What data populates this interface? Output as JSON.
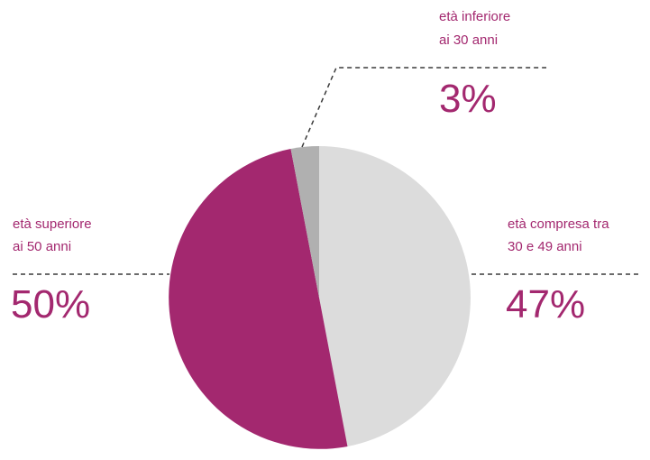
{
  "colors": {
    "accent": "#a3286f",
    "slice_over_50": "#a3286f",
    "slice_30_49": "#dcdcdc",
    "slice_under_30": "#b0b0b0",
    "leader": "#3a3a3a"
  },
  "chart_data": {
    "type": "pie",
    "start": "12 o'clock, clockwise",
    "slices": [
      {
        "key": "30_49",
        "label_lines": [
          "età compresa tra",
          "30 e 49 anni"
        ],
        "value": 47,
        "display": "47%",
        "color": "#dcdcdc"
      },
      {
        "key": "over_50",
        "label_lines": [
          "età superiore",
          "ai 50 anni"
        ],
        "value": 50,
        "display": "50%",
        "color": "#a3286f"
      },
      {
        "key": "under_30",
        "label_lines": [
          "età inferiore",
          "ai 30 anni"
        ],
        "value": 3,
        "display": "3%",
        "color": "#b0b0b0"
      }
    ]
  }
}
